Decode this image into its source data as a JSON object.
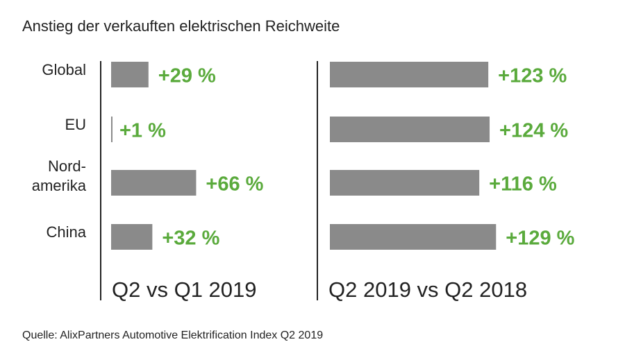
{
  "chart_data": [
    {
      "type": "bar",
      "orientation": "horizontal",
      "title": "Anstieg der verkauften elektrischen Reichweite",
      "xlabel": "Q2 vs Q1 2019",
      "categories": [
        "Global",
        "EU",
        "Nord-\namerika",
        "China"
      ],
      "values": [
        29,
        1,
        66,
        32
      ],
      "data_labels": [
        "+29 %",
        "+1 %",
        "+66 %",
        "+32 %"
      ],
      "unit": "%"
    },
    {
      "type": "bar",
      "orientation": "horizontal",
      "xlabel": "Q2 2019 vs Q2 2018",
      "categories": [
        "Global",
        "EU",
        "Nord-\namerika",
        "China"
      ],
      "values": [
        123,
        124,
        116,
        129
      ],
      "data_labels": [
        "+123 %",
        "+124 %",
        "+116 %",
        "+129 %"
      ],
      "unit": "%"
    }
  ],
  "title": "Anstieg der verkauften elektrischen Reichweite",
  "source": "Quelle: AlixPartners Automotive Elektrification Index Q2 2019",
  "colors": {
    "bar": "#8a8a8a",
    "label": "#5aaa3c",
    "text": "#222222",
    "axis": "#222222"
  },
  "grid": false
}
